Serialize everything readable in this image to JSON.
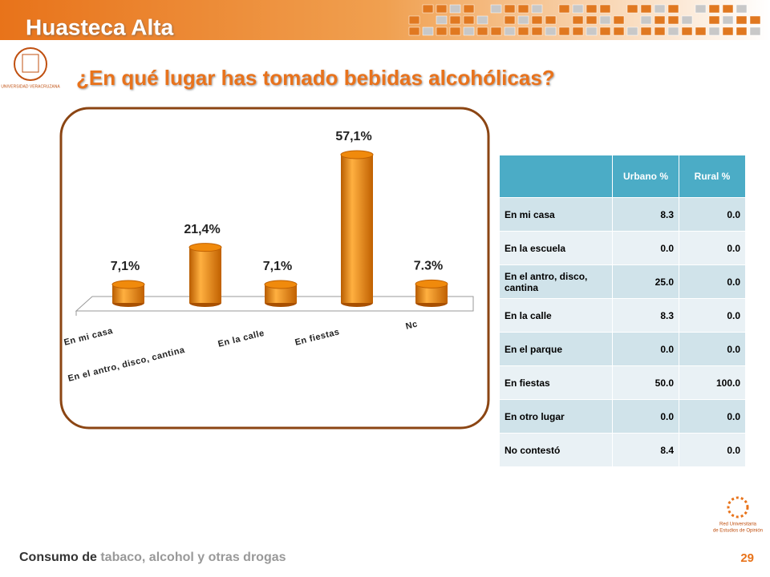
{
  "header": {
    "title": "Huasteca Alta",
    "logo_text": "UNIVERSIDAD VERACRUZANA"
  },
  "chart_data": {
    "type": "bar3d",
    "title": "¿En qué lugar has tomado bebidas alcohólicas?",
    "categories": [
      "En mi casa",
      "En el antro, disco, cantina",
      "En la calle",
      "En fiestas",
      "Nc"
    ],
    "values": [
      7.1,
      21.4,
      7.1,
      57.1,
      7.3
    ],
    "value_labels": [
      "7,1%",
      "21,4%",
      "7,1%",
      "57,1%",
      "7.3%"
    ],
    "color": "#f08a0c"
  },
  "table": {
    "columns": [
      "Urbano %",
      "Rural %"
    ],
    "rows": [
      [
        "En mi casa",
        "8.3",
        "0.0"
      ],
      [
        "En la escuela",
        "0.0",
        "0.0"
      ],
      [
        "En el antro, disco, cantina",
        "25.0",
        "0.0"
      ],
      [
        "En la calle",
        "8.3",
        "0.0"
      ],
      [
        "En el parque",
        "0.0",
        "0.0"
      ],
      [
        "En fiestas",
        "50.0",
        "100.0"
      ],
      [
        "En otro lugar",
        "0.0",
        "0.0"
      ],
      [
        "No contestó",
        "8.4",
        "0.0"
      ]
    ]
  },
  "footer": {
    "topic_a": "Consumo de",
    "topic_b": "tabaco, alcohol y otras drogas",
    "page": "29",
    "org": [
      "Red Universitaria",
      "de Estudios de Opinión"
    ]
  }
}
